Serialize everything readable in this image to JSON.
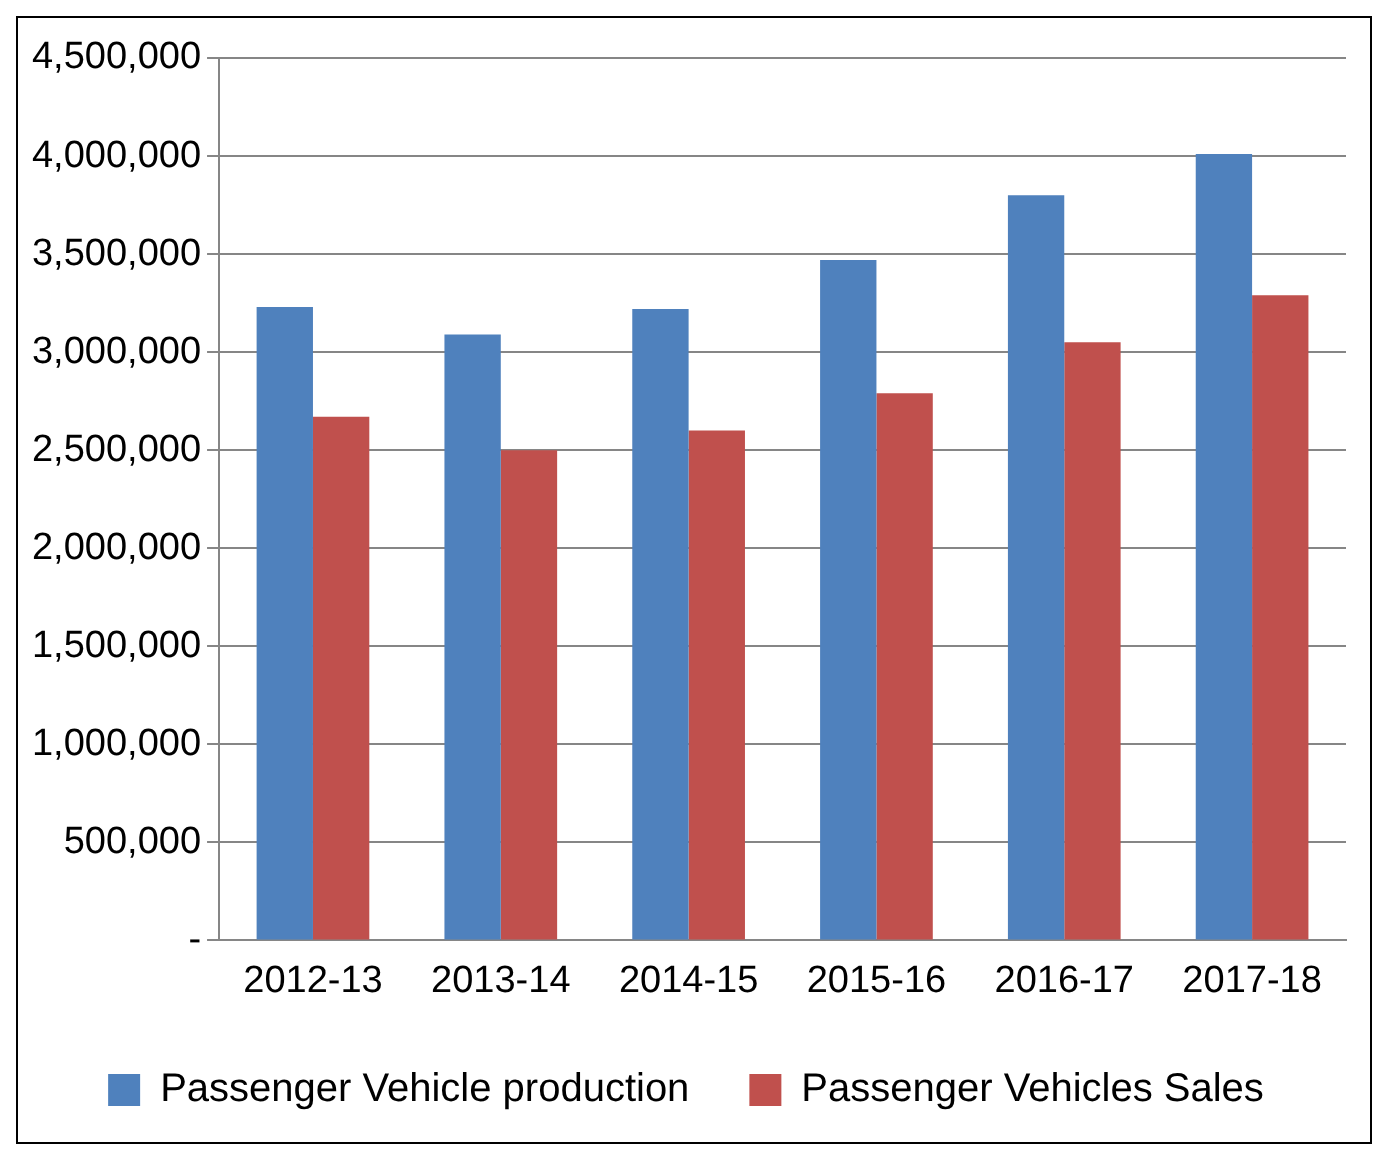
{
  "chart_data": {
    "type": "bar",
    "categories": [
      "2012-13",
      "2013-14",
      "2014-15",
      "2015-16",
      "2016-17",
      "2017-18"
    ],
    "series": [
      {
        "name": "Passenger Vehicle production",
        "color": "#4f81bd",
        "values": [
          3230000,
          3090000,
          3220000,
          3470000,
          3800000,
          4010000
        ]
      },
      {
        "name": "Passenger Vehicles Sales",
        "color": "#c0504d",
        "values": [
          2670000,
          2500000,
          2600000,
          2790000,
          3050000,
          3290000
        ]
      }
    ],
    "ylim": [
      0,
      4500000
    ],
    "yticks": [
      {
        "value": 0,
        "label": "-"
      },
      {
        "value": 500000,
        "label": "500,000"
      },
      {
        "value": 1000000,
        "label": "1,000,000"
      },
      {
        "value": 1500000,
        "label": "1,500,000"
      },
      {
        "value": 2000000,
        "label": "2,000,000"
      },
      {
        "value": 2500000,
        "label": "2,500,000"
      },
      {
        "value": 3000000,
        "label": "3,000,000"
      },
      {
        "value": 3500000,
        "label": "3,500,000"
      },
      {
        "value": 4000000,
        "label": "4,000,000"
      },
      {
        "value": 4500000,
        "label": "4,500,000"
      }
    ],
    "grid": "y",
    "legend": "bottom"
  }
}
